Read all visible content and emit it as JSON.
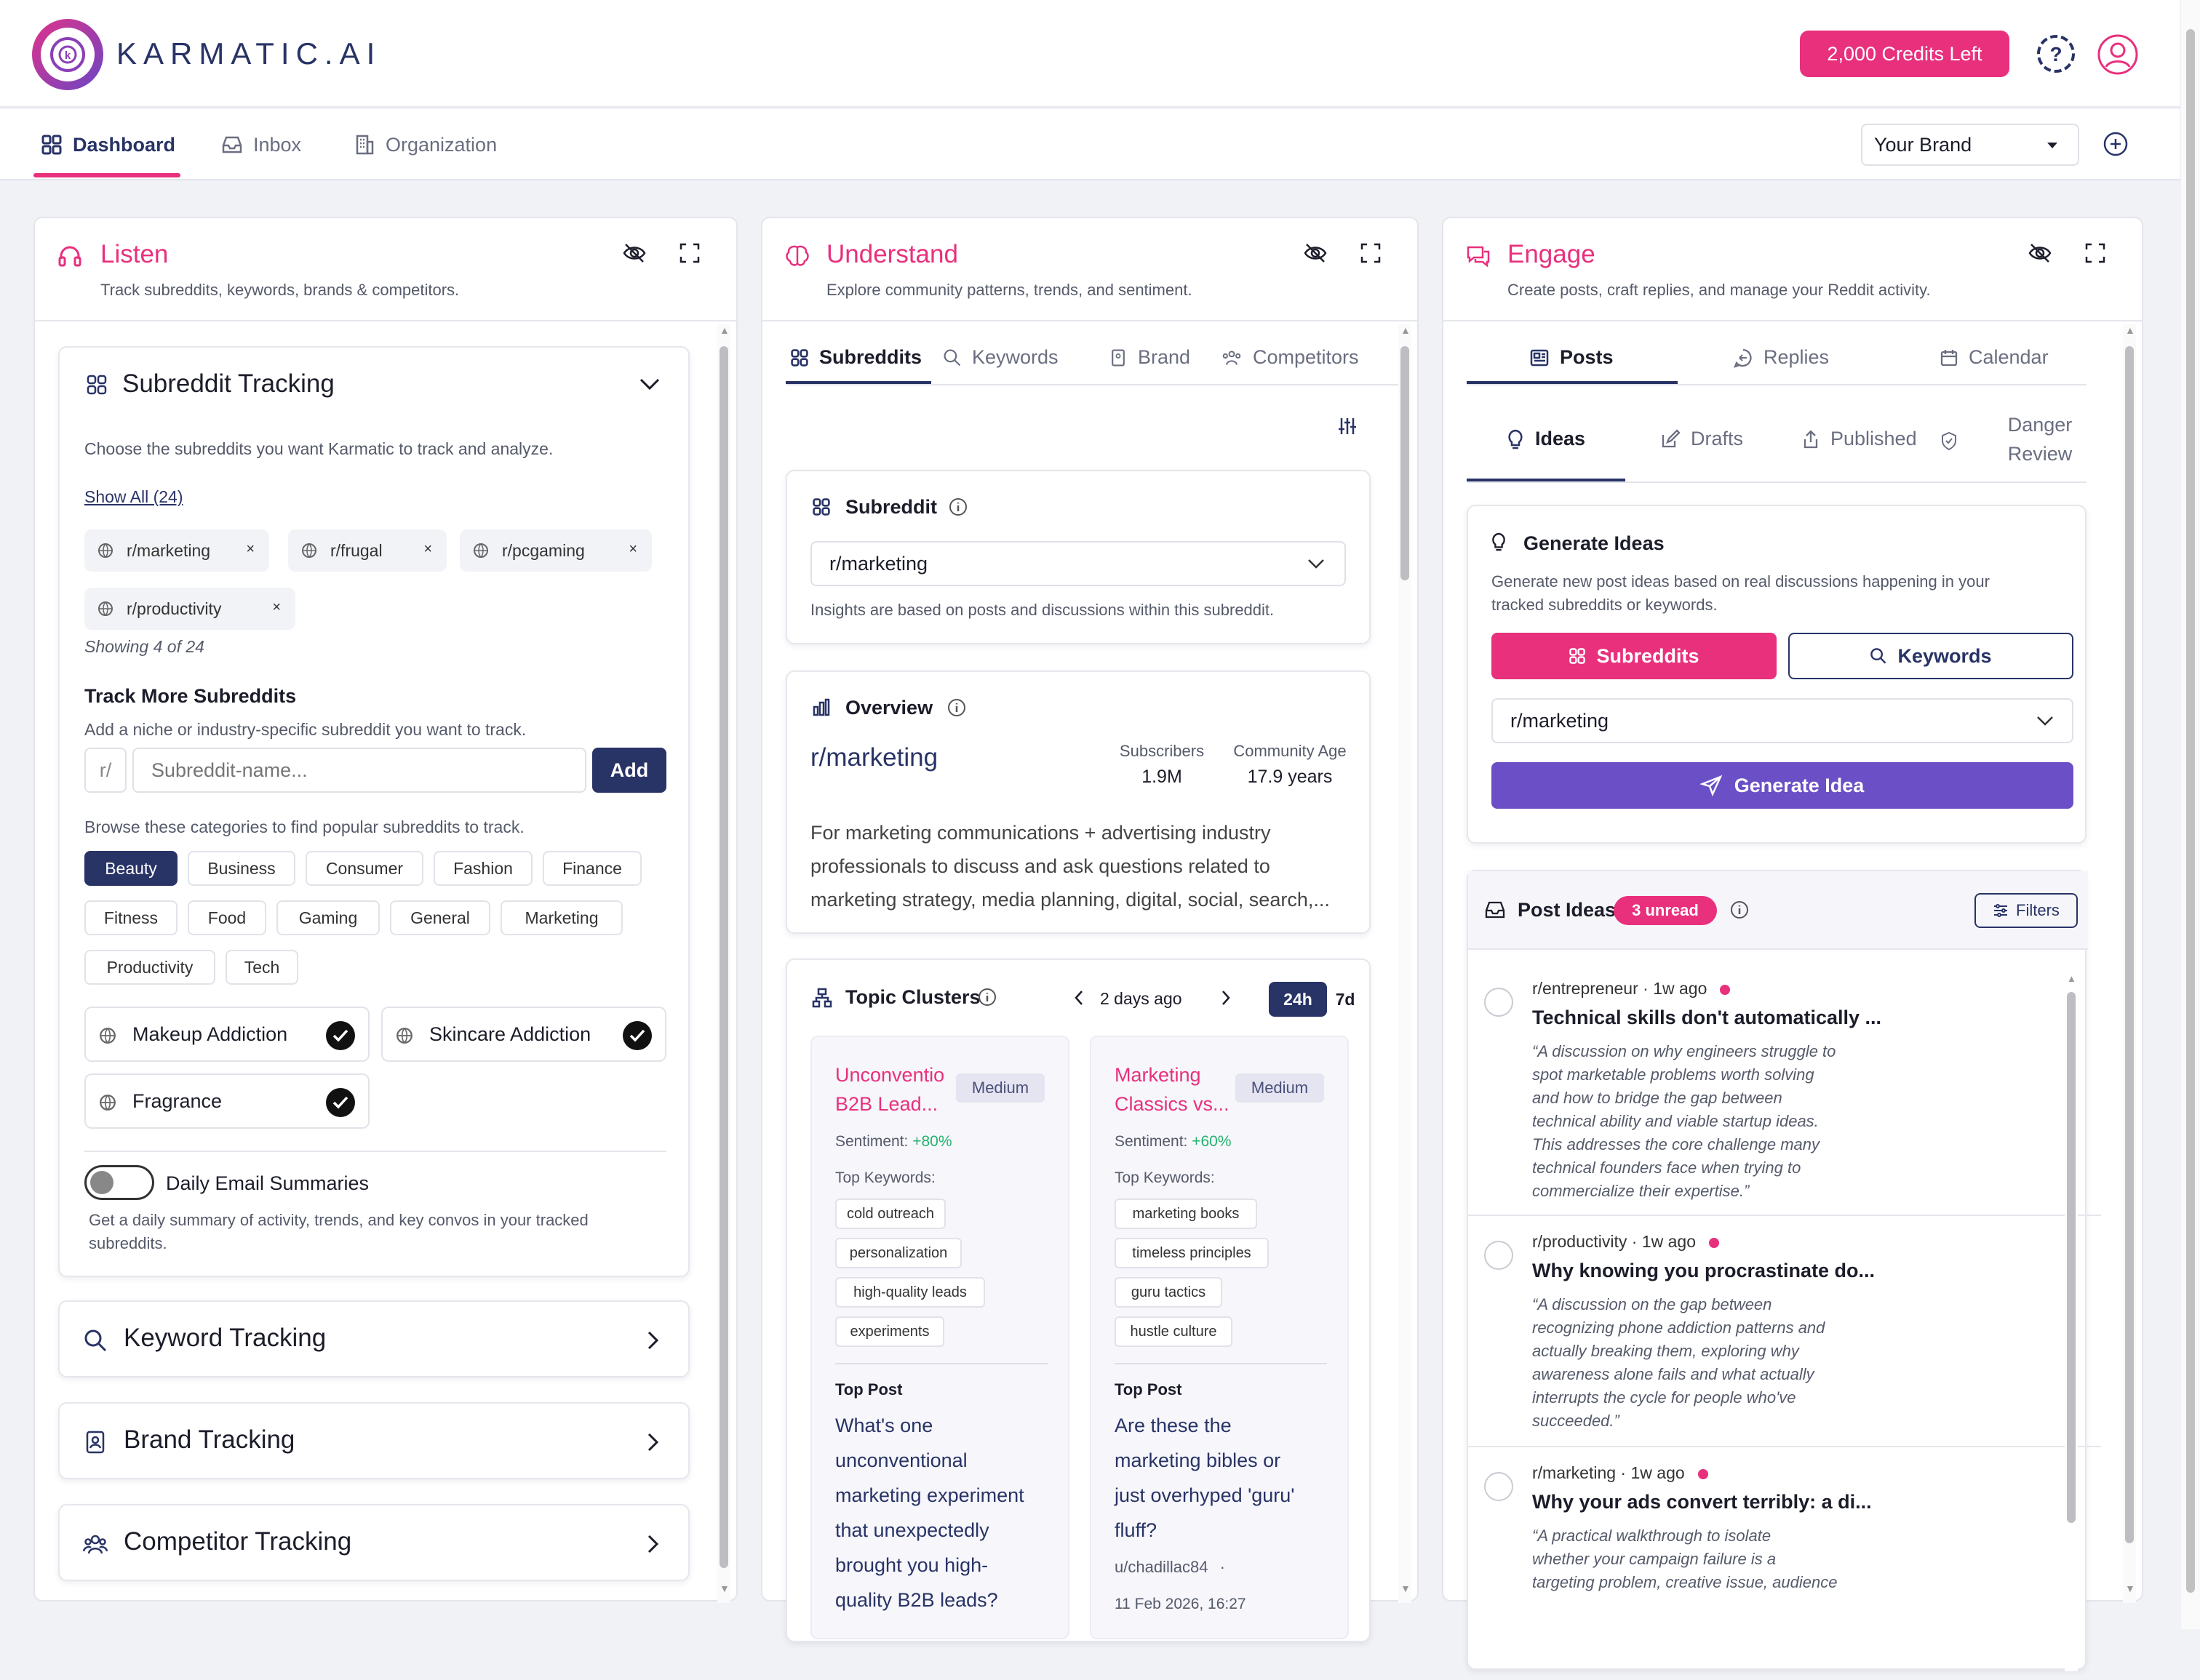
{
  "app": {
    "name": "KARMATIC.AI",
    "credits": "2,000 Credits Left"
  },
  "nav": {
    "tabs": [
      "Dashboard",
      "Inbox",
      "Organization"
    ],
    "brand_select": "Your Brand"
  },
  "listen": {
    "title": "Listen",
    "subtitle": "Track subreddits, keywords, brands & competitors.",
    "subreddit_tracking": {
      "title": "Subreddit Tracking",
      "desc": "Choose the subreddits you want Karmatic to track and analyze.",
      "show_all": "Show All (24)",
      "tracked": [
        "r/marketing",
        "r/frugal",
        "r/pcgaming",
        "r/productivity"
      ],
      "showing": "Showing 4 of 24",
      "track_more_title": "Track More Subreddits",
      "track_more_desc": "Add a niche or industry-specific subreddit you want to track.",
      "prefix": "r/",
      "input_placeholder": "Subreddit-name...",
      "add_label": "Add",
      "browse_desc": "Browse these categories to find popular subreddits to track.",
      "categories": [
        "Beauty",
        "Business",
        "Consumer",
        "Fashion",
        "Finance",
        "Fitness",
        "Food",
        "Gaming",
        "General",
        "Marketing",
        "Productivity",
        "Tech"
      ],
      "selected_category": "Beauty",
      "suggestions": [
        "Makeup Addiction",
        "Skincare Addiction",
        "Fragrance"
      ],
      "email_toggle_label": "Daily Email Summaries",
      "email_toggle_on": false,
      "email_desc": "Get a daily summary of activity, trends, and key convos in your tracked subreddits."
    },
    "keyword_tracking": "Keyword Tracking",
    "brand_tracking": "Brand Tracking",
    "competitor_tracking": "Competitor Tracking"
  },
  "understand": {
    "title": "Understand",
    "subtitle": "Explore community patterns, trends, and sentiment.",
    "tabs": [
      "Subreddits",
      "Keywords",
      "Brand",
      "Competitors"
    ],
    "subreddit_card": {
      "title": "Subreddit",
      "selected": "r/marketing",
      "note": "Insights are based on posts and discussions within this subreddit."
    },
    "overview": {
      "title": "Overview",
      "name": "r/marketing",
      "subscribers_label": "Subscribers",
      "subscribers": "1.9M",
      "age_label": "Community Age",
      "age": "17.9 years",
      "desc_lines": [
        "For marketing communications + advertising industry",
        "professionals to discuss and ask questions related to",
        "marketing strategy, media planning, digital, social, search,..."
      ]
    },
    "topic_clusters": {
      "title": "Topic Clusters",
      "date": "2 days ago",
      "ranges": [
        "24h",
        "7d"
      ],
      "active_range": "24h",
      "sentiment_label": "Sentiment:",
      "keywords_label": "Top Keywords:",
      "top_post_label": "Top Post",
      "clusters": [
        {
          "title_lines": [
            "Unconventio",
            "B2B Lead..."
          ],
          "badge": "Medium",
          "sentiment": "+80%",
          "keywords": [
            "cold outreach",
            "personalization",
            "high-quality leads",
            "experiments"
          ],
          "post_lines": [
            "What's one",
            "unconventional",
            "marketing experiment",
            "that unexpectedly",
            "brought you high-",
            "quality B2B leads?"
          ]
        },
        {
          "title_lines": [
            "Marketing",
            "Classics vs..."
          ],
          "badge": "Medium",
          "sentiment": "+60%",
          "keywords": [
            "marketing books",
            "timeless principles",
            "guru tactics",
            "hustle culture"
          ],
          "post_lines": [
            "Are these the",
            "marketing bibles or",
            "just overhyped 'guru'",
            "fluff?"
          ],
          "author": "u/chadillac84",
          "date": "11 Feb 2026, 16:27"
        }
      ]
    }
  },
  "engage": {
    "title": "Engage",
    "subtitle": "Create posts, craft replies, and manage your Reddit activity.",
    "tabs": [
      "Posts",
      "Replies",
      "Calendar"
    ],
    "subtabs": [
      "Ideas",
      "Drafts",
      "Published"
    ],
    "danger_review": [
      "Danger",
      "Review"
    ],
    "generate": {
      "title": "Generate Ideas",
      "desc_lines": [
        "Generate new post ideas based on real discussions happening in your",
        "tracked subreddits or keywords."
      ],
      "source_subreddits": "Subreddits",
      "source_keywords": "Keywords",
      "selected": "r/marketing",
      "button": "Generate Idea"
    },
    "post_ideas": {
      "title": "Post Ideas",
      "unread": "3 unread",
      "filters": "Filters",
      "items": [
        {
          "subreddit": "r/entrepreneur",
          "age": "1w ago",
          "title": "Technical skills don't automatically ...",
          "desc_lines": [
            "“A discussion on why engineers struggle to",
            "spot marketable problems worth solving",
            "and how to bridge the gap between",
            "technical ability and viable startup ideas.",
            "This addresses the core challenge many",
            "technical founders face when trying to",
            "commercialize their expertise.”"
          ]
        },
        {
          "subreddit": "r/productivity",
          "age": "1w ago",
          "title": "Why knowing you procrastinate do...",
          "desc_lines": [
            "“A discussion on the gap between",
            "recognizing phone addiction patterns and",
            "actually breaking them, exploring why",
            "awareness alone fails and what actually",
            "interrupts the cycle for people who've",
            "succeeded.”"
          ]
        },
        {
          "subreddit": "r/marketing",
          "age": "1w ago",
          "title": "Why your ads convert terribly: a di...",
          "desc_lines": [
            "“A practical walkthrough to isolate",
            "whether your campaign failure is a",
            "targeting problem, creative issue, audience"
          ]
        }
      ]
    }
  },
  "colors": {
    "pink": "#e8307d",
    "navy": "#283366",
    "purple": "#6b4fc6",
    "green": "#22b36b"
  }
}
